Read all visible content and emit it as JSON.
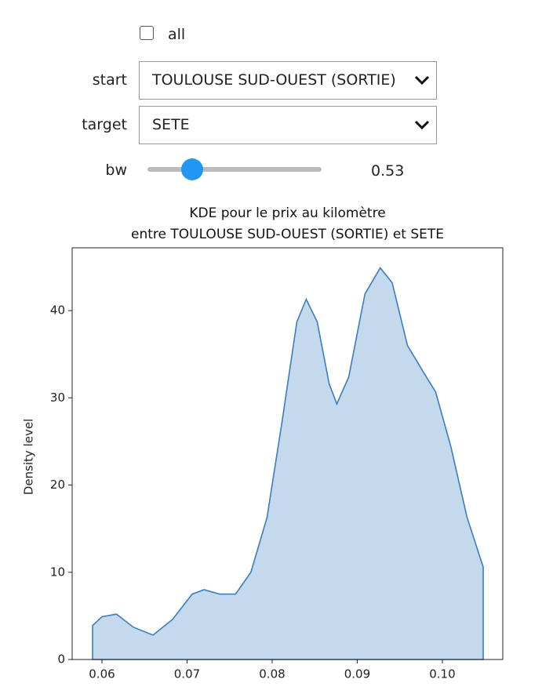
{
  "widgets": {
    "all": {
      "label": "all",
      "checked": false
    },
    "start": {
      "label": "start",
      "value": "TOULOUSE SUD-OUEST (SORTIE)"
    },
    "target": {
      "label": "target",
      "value": "SETE"
    },
    "bw": {
      "label": "bw",
      "readout": "0.53"
    }
  },
  "chart_data": {
    "type": "area",
    "title": "KDE pour le prix au kilomètre\nentre TOULOUSE SUD-OUEST (SORTIE) et SETE",
    "y_label": "Density level",
    "x": [
      0.0589,
      0.06,
      0.0617,
      0.0637,
      0.066,
      0.0683,
      0.0706,
      0.072,
      0.0738,
      0.0757,
      0.0775,
      0.0794,
      0.0812,
      0.0829,
      0.084,
      0.0853,
      0.0867,
      0.0876,
      0.089,
      0.0909,
      0.0927,
      0.0941,
      0.0959,
      0.0978,
      0.0992,
      0.101,
      0.1029,
      0.1048
    ],
    "values": [
      3.9,
      4.9,
      5.2,
      3.7,
      2.8,
      4.6,
      7.5,
      8.0,
      7.5,
      7.5,
      10.0,
      16.3,
      27.5,
      38.7,
      41.3,
      38.7,
      31.6,
      29.3,
      32.4,
      41.9,
      44.9,
      43.2,
      36.0,
      32.9,
      30.7,
      24.4,
      16.3,
      10.6
    ],
    "color": "#3b7dbd",
    "fill_color": "#c4d9ec",
    "xlim": [
      0.0565,
      0.1071
    ],
    "ylim": [
      0,
      47.2
    ],
    "xticks": [
      0.06,
      0.07,
      0.08,
      0.09,
      {
        "value": 0.1,
        "label": "0.10"
      }
    ],
    "yticks": [
      0,
      10,
      20,
      30,
      40
    ]
  }
}
